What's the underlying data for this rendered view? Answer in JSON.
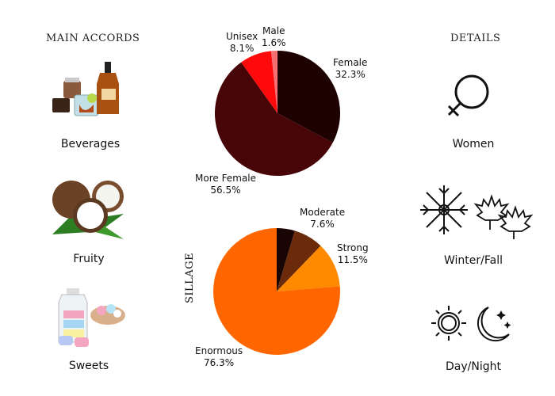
{
  "headings": {
    "main_accords": "MAIN ACCORDS",
    "details": "DETAILS",
    "sillage": "SILLAGE"
  },
  "accords": [
    {
      "label": "Beverages",
      "icon": "beverages-image"
    },
    {
      "label": "Fruity",
      "icon": "coconut-image"
    },
    {
      "label": "Sweets",
      "icon": "sweets-image"
    }
  ],
  "details": [
    {
      "label": "Women",
      "icon": "female-symbol-icon"
    },
    {
      "label": "Winter/Fall",
      "icon": "snowflake-maple-leaf-icon"
    },
    {
      "label": "Day/Night",
      "icon": "sun-moon-icon"
    }
  ],
  "chart_data": [
    {
      "type": "pie",
      "slices": [
        {
          "name": "Female",
          "value": 32.3,
          "display": "32.3%",
          "color": "#1e0202"
        },
        {
          "name": "More Female",
          "value": 56.5,
          "display": "56.5%",
          "color": "#470507"
        },
        {
          "name": "Unisex",
          "value": 8.1,
          "display": "8.1%",
          "color": "#ff0a0a"
        },
        {
          "name": "Male",
          "value": 1.6,
          "display": "1.6%",
          "color": "#f86e72"
        }
      ]
    },
    {
      "type": "pie",
      "title": "SILLAGE",
      "slices": [
        {
          "name": "Moderate",
          "value": 7.6,
          "display": "7.6%",
          "color": "#6b2b0a"
        },
        {
          "name": "Strong",
          "value": 11.5,
          "display": "11.5%",
          "color": "#ff8a00"
        },
        {
          "name": "Enormous",
          "value": 76.3,
          "display": "76.3%",
          "color": "#ff6600"
        },
        {
          "name": "",
          "value": 4.6,
          "display": "",
          "color": "#1a0505"
        }
      ]
    }
  ]
}
